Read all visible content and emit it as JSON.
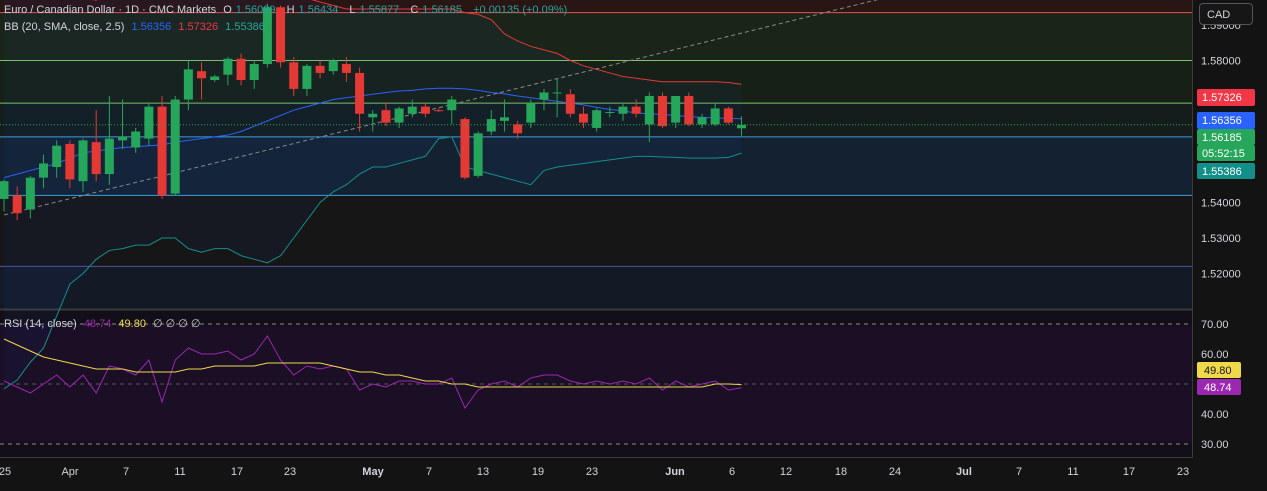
{
  "header": {
    "symbol": "Euro / Canadian Dollar · 1D · CMC Markets",
    "open_label": "O",
    "open": "1.56089",
    "high_label": "H",
    "high": "1.56434",
    "low_label": "L",
    "low": "1.55877",
    "close_label": "C",
    "close": "1.56185",
    "change": "+0.00135 (+0.09%)"
  },
  "bb_legend": {
    "label": "BB (20, SMA, close, 2.5)",
    "basis": "1.56356",
    "upper": "1.57326",
    "lower": "1.55386"
  },
  "rsi_legend": {
    "label": "RSI (14, close)",
    "rsi": "48.74",
    "ma": "49.80",
    "placeholders": "∅ ∅ ∅ ∅"
  },
  "currency_button": "CAD",
  "price_axis": {
    "ticks": [
      "1.59000",
      "1.58000",
      "1.57000",
      "1.55000",
      "1.54000",
      "1.53000",
      "1.52000"
    ],
    "tick_values": [
      1.59,
      1.58,
      1.57,
      1.55,
      1.54,
      1.53,
      1.52
    ],
    "labels": [
      {
        "text": "1.57326",
        "value": 1.57326,
        "color": "#f23645",
        "kind": "bb_upper"
      },
      {
        "text": "1.56356",
        "value": 1.56356,
        "color": "#2962ff",
        "kind": "bb_basis"
      },
      {
        "text": "1.56185",
        "value": 1.56185,
        "color": "#26a65a",
        "kind": "last_price"
      },
      {
        "text": "05:52:15",
        "value": null,
        "color": "#26a65a",
        "kind": "countdown"
      },
      {
        "text": "1.55386",
        "value": 1.55386,
        "color": "#138f8a",
        "kind": "bb_lower"
      }
    ]
  },
  "rsi_axis": {
    "ticks": [
      "70.00",
      "60.00",
      "40.00",
      "30.00"
    ],
    "tick_values": [
      70,
      60,
      40,
      30
    ],
    "labels": [
      {
        "text": "49.80",
        "value": 49.8,
        "color": "#f0d84b",
        "text_color": "#131313"
      },
      {
        "text": "48.74",
        "value": 48.74,
        "color": "#9c27b0",
        "text_color": "#ffffff"
      }
    ]
  },
  "time_axis": {
    "labels": [
      "25",
      "Apr",
      "7",
      "11",
      "17",
      "23",
      "May",
      "7",
      "13",
      "19",
      "23",
      "Jun",
      "6",
      "12",
      "18",
      "24",
      "Jul",
      "7",
      "11",
      "17",
      "23"
    ],
    "bold": [
      "May",
      "Jun",
      "Jul"
    ]
  },
  "colors": {
    "up": "#26a65a",
    "down": "#e53935",
    "bb_upper": "#e53935",
    "bb_basis": "#2962ff",
    "bb_lower": "#138f8a",
    "rsi": "#9c27b0",
    "rsi_ma": "#f0d84b"
  },
  "horizontal_levels": [
    {
      "value": 1.5935,
      "color": "#e05050",
      "zone": "red"
    },
    {
      "value": 1.58,
      "color": "#7cc36a",
      "zone": "green"
    },
    {
      "value": 1.568,
      "color": "#7cc36a",
      "zone": "green"
    },
    {
      "value": 1.5585,
      "color": "#3fa0d6",
      "zone": "blue"
    },
    {
      "value": 1.542,
      "color": "#3fa0d6",
      "zone": "blue"
    },
    {
      "value": 1.522,
      "color": "#5050a0",
      "zone": "dark"
    }
  ],
  "trendline": {
    "from": {
      "index": 0,
      "value": 1.5365
    },
    "to": {
      "index": 76,
      "value": 1.606
    }
  },
  "chart_data": {
    "type": "candlestick",
    "title": "Euro / Canadian Dollar · 1D · CMC Markets",
    "ylim": [
      1.5155,
      1.598
    ],
    "candles": [
      {
        "o": 1.541,
        "h": 1.5465,
        "l": 1.5375,
        "c": 1.546
      },
      {
        "o": 1.542,
        "h": 1.5445,
        "l": 1.535,
        "c": 1.537
      },
      {
        "o": 1.538,
        "h": 1.5475,
        "l": 1.5355,
        "c": 1.547
      },
      {
        "o": 1.547,
        "h": 1.5535,
        "l": 1.544,
        "c": 1.551
      },
      {
        "o": 1.55,
        "h": 1.5575,
        "l": 1.547,
        "c": 1.556
      },
      {
        "o": 1.5565,
        "h": 1.5575,
        "l": 1.544,
        "c": 1.5465
      },
      {
        "o": 1.546,
        "h": 1.558,
        "l": 1.543,
        "c": 1.5575
      },
      {
        "o": 1.557,
        "h": 1.566,
        "l": 1.546,
        "c": 1.548
      },
      {
        "o": 1.548,
        "h": 1.57,
        "l": 1.545,
        "c": 1.558
      },
      {
        "o": 1.5575,
        "h": 1.569,
        "l": 1.555,
        "c": 1.5585
      },
      {
        "o": 1.5555,
        "h": 1.561,
        "l": 1.554,
        "c": 1.56
      },
      {
        "o": 1.558,
        "h": 1.568,
        "l": 1.556,
        "c": 1.567
      },
      {
        "o": 1.567,
        "h": 1.57,
        "l": 1.541,
        "c": 1.542
      },
      {
        "o": 1.5425,
        "h": 1.57,
        "l": 1.542,
        "c": 1.569
      },
      {
        "o": 1.569,
        "h": 1.58,
        "l": 1.566,
        "c": 1.5775
      },
      {
        "o": 1.577,
        "h": 1.5795,
        "l": 1.569,
        "c": 1.575
      },
      {
        "o": 1.5745,
        "h": 1.576,
        "l": 1.574,
        "c": 1.5755
      },
      {
        "o": 1.576,
        "h": 1.581,
        "l": 1.573,
        "c": 1.5805
      },
      {
        "o": 1.5805,
        "h": 1.582,
        "l": 1.573,
        "c": 1.5745
      },
      {
        "o": 1.5745,
        "h": 1.58,
        "l": 1.572,
        "c": 1.579
      },
      {
        "o": 1.579,
        "h": 1.596,
        "l": 1.578,
        "c": 1.595
      },
      {
        "o": 1.595,
        "h": 1.5955,
        "l": 1.578,
        "c": 1.5795
      },
      {
        "o": 1.5795,
        "h": 1.581,
        "l": 1.57,
        "c": 1.572
      },
      {
        "o": 1.572,
        "h": 1.579,
        "l": 1.57,
        "c": 1.5785
      },
      {
        "o": 1.5785,
        "h": 1.58,
        "l": 1.575,
        "c": 1.5765
      },
      {
        "o": 1.577,
        "h": 1.5805,
        "l": 1.576,
        "c": 1.58
      },
      {
        "o": 1.579,
        "h": 1.581,
        "l": 1.574,
        "c": 1.5765
      },
      {
        "o": 1.5765,
        "h": 1.578,
        "l": 1.56,
        "c": 1.565
      },
      {
        "o": 1.564,
        "h": 1.566,
        "l": 1.56,
        "c": 1.565
      },
      {
        "o": 1.566,
        "h": 1.568,
        "l": 1.5615,
        "c": 1.5625
      },
      {
        "o": 1.5625,
        "h": 1.567,
        "l": 1.561,
        "c": 1.5665
      },
      {
        "o": 1.565,
        "h": 1.569,
        "l": 1.564,
        "c": 1.567
      },
      {
        "o": 1.567,
        "h": 1.568,
        "l": 1.564,
        "c": 1.565
      },
      {
        "o": 1.566,
        "h": 1.5665,
        "l": 1.5655,
        "c": 1.5658
      },
      {
        "o": 1.566,
        "h": 1.57,
        "l": 1.562,
        "c": 1.569
      },
      {
        "o": 1.5635,
        "h": 1.564,
        "l": 1.5465,
        "c": 1.547
      },
      {
        "o": 1.5475,
        "h": 1.56,
        "l": 1.547,
        "c": 1.5595
      },
      {
        "o": 1.56,
        "h": 1.566,
        "l": 1.559,
        "c": 1.5635
      },
      {
        "o": 1.563,
        "h": 1.569,
        "l": 1.56,
        "c": 1.564
      },
      {
        "o": 1.562,
        "h": 1.563,
        "l": 1.558,
        "c": 1.5595
      },
      {
        "o": 1.5625,
        "h": 1.569,
        "l": 1.561,
        "c": 1.568
      },
      {
        "o": 1.569,
        "h": 1.572,
        "l": 1.566,
        "c": 1.571
      },
      {
        "o": 1.571,
        "h": 1.575,
        "l": 1.564,
        "c": 1.571
      },
      {
        "o": 1.5705,
        "h": 1.572,
        "l": 1.564,
        "c": 1.565
      },
      {
        "o": 1.565,
        "h": 1.567,
        "l": 1.561,
        "c": 1.5625
      },
      {
        "o": 1.561,
        "h": 1.5665,
        "l": 1.56,
        "c": 1.566
      },
      {
        "o": 1.5655,
        "h": 1.567,
        "l": 1.564,
        "c": 1.5655
      },
      {
        "o": 1.565,
        "h": 1.568,
        "l": 1.563,
        "c": 1.567
      },
      {
        "o": 1.567,
        "h": 1.569,
        "l": 1.564,
        "c": 1.565
      },
      {
        "o": 1.562,
        "h": 1.571,
        "l": 1.557,
        "c": 1.57
      },
      {
        "o": 1.57,
        "h": 1.571,
        "l": 1.561,
        "c": 1.5615
      },
      {
        "o": 1.5625,
        "h": 1.57,
        "l": 1.561,
        "c": 1.57
      },
      {
        "o": 1.57,
        "h": 1.571,
        "l": 1.5615,
        "c": 1.562
      },
      {
        "o": 1.562,
        "h": 1.565,
        "l": 1.561,
        "c": 1.564
      },
      {
        "o": 1.562,
        "h": 1.568,
        "l": 1.5615,
        "c": 1.5665
      },
      {
        "o": 1.5665,
        "h": 1.567,
        "l": 1.562,
        "c": 1.5625
      },
      {
        "o": 1.5609,
        "h": 1.5643,
        "l": 1.5588,
        "c": 1.5619
      }
    ],
    "bb_upper": [
      1.612,
      1.608,
      1.604,
      1.6005,
      1.599,
      1.598,
      1.5975,
      1.597,
      1.5985,
      1.6005,
      1.6005,
      1.6005,
      1.6005,
      1.601,
      1.6005,
      1.6005,
      1.6005,
      1.6005,
      1.6005,
      1.599,
      1.599,
      1.599,
      1.599,
      1.5975,
      1.5965,
      1.5955,
      1.5945,
      1.5945,
      1.5945,
      1.5945,
      1.5945,
      1.5945,
      1.5945,
      1.5945,
      1.5945,
      1.5935,
      1.593,
      1.5915,
      1.5875,
      1.5855,
      1.584,
      1.583,
      1.582,
      1.58,
      1.5785,
      1.5775,
      1.5765,
      1.5755,
      1.575,
      1.5745,
      1.574,
      1.574,
      1.574,
      1.574,
      1.574,
      1.5738,
      1.5733
    ],
    "bb_basis": [
      1.547,
      1.548,
      1.549,
      1.55,
      1.551,
      1.5525,
      1.554,
      1.5545,
      1.555,
      1.5555,
      1.5557,
      1.556,
      1.5562,
      1.557,
      1.5575,
      1.558,
      1.5585,
      1.559,
      1.56,
      1.5615,
      1.563,
      1.5645,
      1.566,
      1.567,
      1.568,
      1.569,
      1.5695,
      1.57,
      1.5705,
      1.571,
      1.5714,
      1.5716,
      1.572,
      1.5722,
      1.5722,
      1.572,
      1.5716,
      1.571,
      1.5706,
      1.57,
      1.5695,
      1.569,
      1.5685,
      1.568,
      1.5675,
      1.5668,
      1.5662,
      1.5658,
      1.5652,
      1.565,
      1.5648,
      1.5645,
      1.5642,
      1.564,
      1.5638,
      1.5637,
      1.5636
    ],
    "bb_lower": [
      1.4875,
      1.49,
      1.495,
      1.499,
      1.508,
      1.517,
      1.52,
      1.524,
      1.5265,
      1.527,
      1.528,
      1.528,
      1.53,
      1.53,
      1.527,
      1.526,
      1.527,
      1.527,
      1.525,
      1.524,
      1.523,
      1.525,
      1.53,
      1.535,
      1.54,
      1.543,
      1.545,
      1.548,
      1.55,
      1.55,
      1.551,
      1.552,
      1.553,
      1.558,
      1.5585,
      1.55,
      1.549,
      1.548,
      1.547,
      1.546,
      1.545,
      1.549,
      1.55,
      1.5505,
      1.551,
      1.5515,
      1.552,
      1.5525,
      1.553,
      1.553,
      1.5528,
      1.5527,
      1.5525,
      1.5525,
      1.5525,
      1.5527,
      1.5539
    ],
    "rsi_ylim": [
      26,
      76
    ],
    "rsi": [
      51,
      49,
      47,
      50,
      53,
      49,
      53,
      47,
      56,
      55,
      53,
      58,
      44,
      58,
      62,
      60,
      60,
      61,
      58,
      60,
      66,
      58,
      53,
      56,
      55,
      56,
      55,
      48,
      50,
      49,
      51,
      51,
      50,
      50,
      52,
      42,
      48,
      50,
      51,
      49,
      52,
      53,
      53,
      51,
      50,
      51,
      50,
      51,
      50,
      52,
      48,
      51,
      49,
      50,
      51,
      48,
      48.74
    ],
    "rsi_ma": [
      65,
      63,
      61,
      59,
      58,
      57,
      56,
      55,
      55,
      55,
      54,
      54,
      54,
      54,
      55,
      55,
      56,
      56,
      56,
      56,
      57,
      57,
      57,
      57,
      57,
      56,
      55,
      54,
      54,
      53,
      53,
      52,
      51,
      51,
      50,
      50,
      49,
      49,
      49,
      49,
      49,
      49,
      49,
      49,
      49,
      49,
      49,
      49,
      49,
      49,
      49,
      49,
      49,
      49,
      50,
      50,
      49.8
    ]
  }
}
